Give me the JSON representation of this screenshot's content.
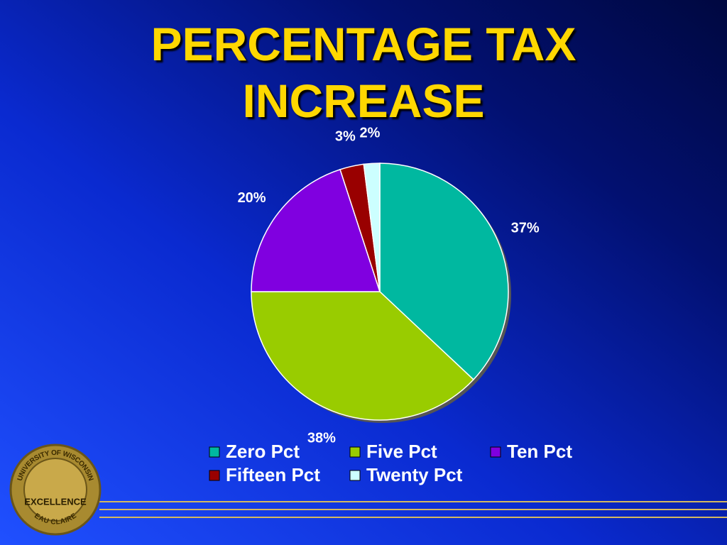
{
  "chart_data": {
    "type": "pie",
    "title": "PERCENTAGE TAX INCREASE",
    "categories": [
      "Zero Pct",
      "Five Pct",
      "Ten Pct",
      "Fifteen Pct",
      "Twenty Pct"
    ],
    "values": [
      37,
      38,
      20,
      3,
      2
    ],
    "value_labels": [
      "37%",
      "38%",
      "20%",
      "3%",
      "2%"
    ],
    "colors": [
      "#00b8a0",
      "#99cc00",
      "#8000e0",
      "#990000",
      "#ccffff"
    ]
  },
  "logo": {
    "ring_top": "UNIVERSITY OF WISCONSIN",
    "center": "EXCELLENCE",
    "ring_bottom": "EAU CLAIRE"
  }
}
